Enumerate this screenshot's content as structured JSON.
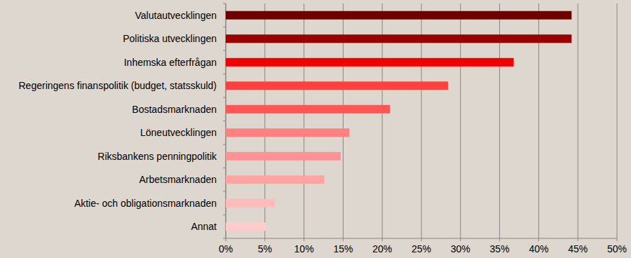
{
  "chart_data": {
    "type": "bar",
    "orientation": "horizontal",
    "categories": [
      "Valutautvecklingen",
      "Politiska utvecklingen",
      "Inhemska efterfrågan",
      "Regeringens finanspolitik (budget, statsskuld)",
      "Bostadsmarknaden",
      "Löneutvecklingen",
      "Riksbankens penningpolitik",
      "Arbetsmarknaden",
      "Aktie- och obligationsmarknaden",
      "Annat"
    ],
    "values": [
      44.2,
      44.2,
      36.8,
      28.4,
      21.0,
      15.8,
      14.7,
      12.6,
      6.3,
      5.2
    ],
    "colors": [
      "#6e0000",
      "#990000",
      "#f20000",
      "#ff4040",
      "#ff5555",
      "#ff8080",
      "#ff9393",
      "#ffa3a3",
      "#ffbaba",
      "#ffcccc"
    ],
    "xlim": [
      0,
      50
    ],
    "xticks": [
      {
        "value": 0,
        "label": "0%"
      },
      {
        "value": 5,
        "label": "5%"
      },
      {
        "value": 10,
        "label": "10%"
      },
      {
        "value": 15,
        "label": "15%"
      },
      {
        "value": 20,
        "label": "20%"
      },
      {
        "value": 25,
        "label": "25%"
      },
      {
        "value": 30,
        "label": "30%"
      },
      {
        "value": 35,
        "label": "35%"
      },
      {
        "value": 40,
        "label": "40%"
      },
      {
        "value": 45,
        "label": "45%"
      },
      {
        "value": 50,
        "label": "50%"
      }
    ],
    "grid": true
  }
}
